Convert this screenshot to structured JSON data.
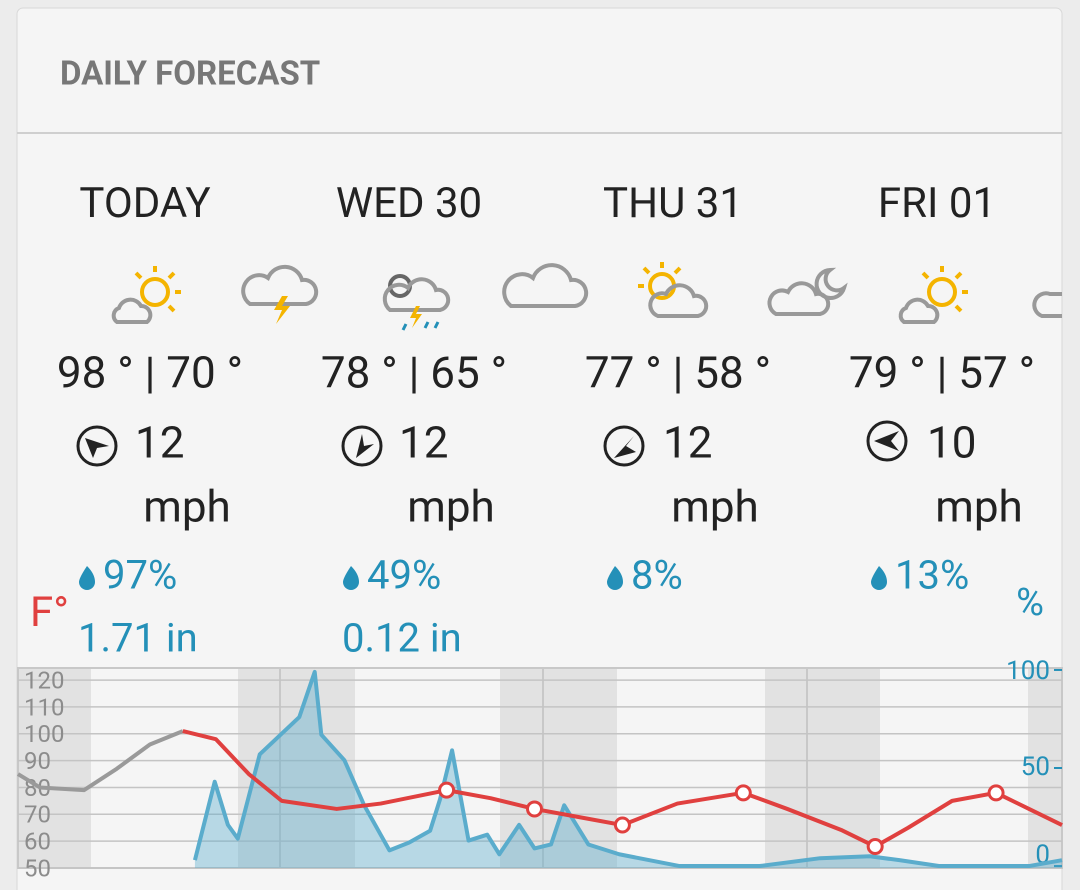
{
  "header": {
    "title": "DAILY FORECAST"
  },
  "days": [
    {
      "label": "TODAY",
      "temps": "98 ° | 70 °",
      "wind": "12",
      "wind_unit": "mph",
      "chance": "97%",
      "amount": "1.71 in"
    },
    {
      "label": "WED 30",
      "temps": "78 ° | 65 °",
      "wind": "12",
      "wind_unit": "mph",
      "chance": "49%",
      "amount": "0.12 in"
    },
    {
      "label": "THU 31",
      "temps": "77 ° | 58 °",
      "wind": "12",
      "wind_unit": "mph",
      "chance": "8%"
    },
    {
      "label": "FRI 01",
      "temps": "79 ° | 57 °",
      "wind": "10",
      "wind_unit": "mph",
      "chance": "13%"
    }
  ],
  "chart_data": {
    "type": "line",
    "y_label": "F°",
    "y2_label": "%",
    "xlim": [
      0,
      95
    ],
    "ylim": [
      50,
      124.5
    ],
    "yticks": [
      50,
      60,
      70,
      80,
      90,
      100,
      110,
      120
    ],
    "y2lim": [
      -1,
      101
    ],
    "y2ticks": [
      0,
      50,
      100
    ],
    "grid": true,
    "series": [
      {
        "color": "#9a9a9a",
        "x": [
          0,
          2,
          6,
          9,
          12,
          15
        ],
        "values": [
          85,
          80,
          79,
          87,
          96,
          101
        ]
      },
      {
        "color": "#e0403f",
        "x": [
          15,
          18,
          21,
          24,
          29,
          33,
          39,
          43,
          47,
          51,
          55,
          60,
          66,
          70,
          75,
          78,
          81,
          85,
          89,
          92,
          95
        ],
        "values": [
          101,
          98,
          85,
          75,
          72,
          74,
          79,
          76,
          72,
          69,
          66,
          74,
          78,
          72,
          64,
          58,
          65,
          75,
          78,
          72,
          66
        ],
        "markers": [
          39,
          47,
          55,
          66,
          78,
          89
        ]
      },
      {
        "type": "area",
        "axis": "y2",
        "color": "#5aaccc",
        "x": [
          16.1,
          17.9,
          19.1,
          20,
          22,
          25.6,
          27,
          27.6,
          29.7,
          31.5,
          33.8,
          35.6,
          37.5,
          38.4,
          39.5,
          41,
          42.7,
          43.8,
          45.6,
          47,
          48.5,
          49.7,
          51.9,
          54.7,
          60.2,
          67.5,
          73,
          77.5,
          80.2,
          83.8,
          92,
          95
        ],
        "values": [
          3,
          43,
          21,
          14,
          57,
          76,
          99,
          67,
          54,
          31,
          8,
          12,
          18,
          34,
          59,
          13,
          16,
          6,
          21,
          9,
          11,
          31,
          11,
          6,
          0,
          0,
          4,
          5,
          3,
          0,
          0,
          3
        ]
      }
    ]
  }
}
